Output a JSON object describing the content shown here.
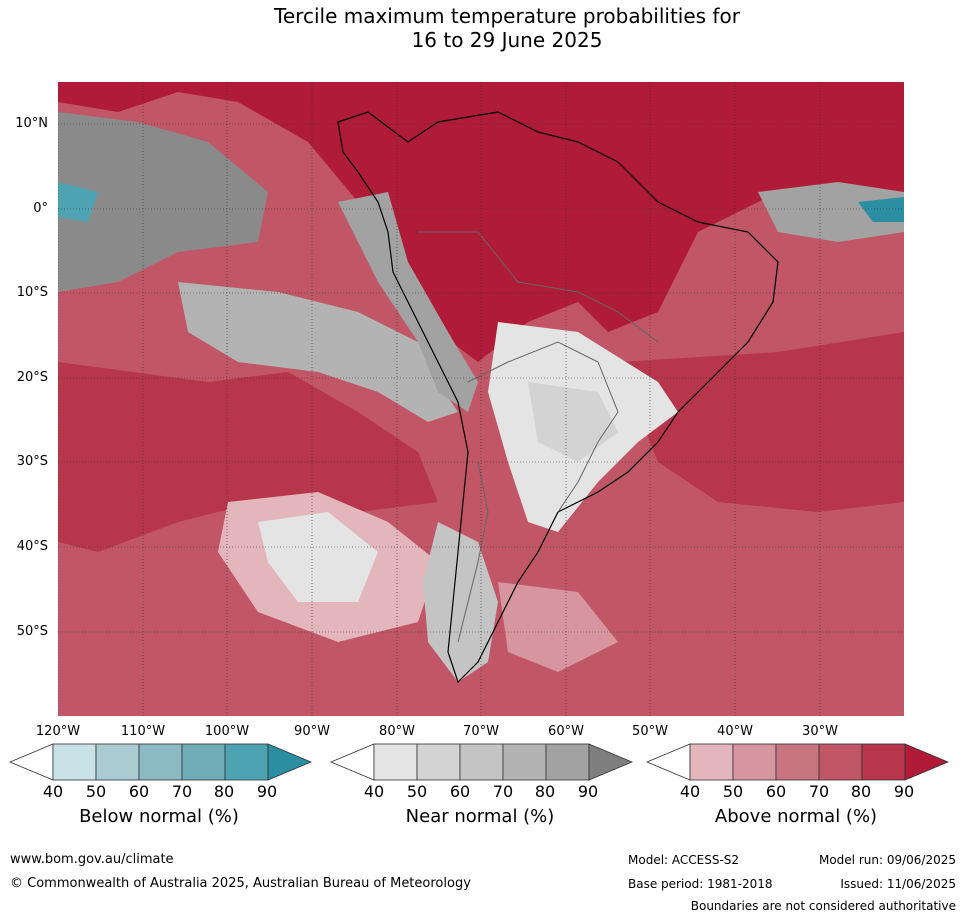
{
  "title_line1": "Tercile maximum temperature probabilities for",
  "title_line2": "16 to 29 June 2025",
  "map": {
    "lat_labels": [
      "10°N",
      "0°",
      "10°S",
      "20°S",
      "30°S",
      "40°S",
      "50°S"
    ],
    "lon_labels": [
      "120°W",
      "110°W",
      "100°W",
      "90°W",
      "80°W",
      "70°W",
      "60°W",
      "50°W",
      "40°W",
      "30°W"
    ]
  },
  "legends": [
    {
      "label": "Below normal (%)",
      "ticks": [
        "40",
        "50",
        "60",
        "70",
        "80",
        "90"
      ],
      "colors": [
        "#ffffff",
        "#c9e2e8",
        "#a9cbd1",
        "#8bbac2",
        "#6fadb9",
        "#4ea3b3",
        "#2b8ea3"
      ]
    },
    {
      "label": "Near normal (%)",
      "ticks": [
        "40",
        "50",
        "60",
        "70",
        "80",
        "90"
      ],
      "colors": [
        "#ffffff",
        "#e4e4e4",
        "#d3d3d3",
        "#c4c4c4",
        "#b3b3b3",
        "#a2a2a2",
        "#7f7f7f"
      ]
    },
    {
      "label": "Above normal (%)",
      "ticks": [
        "40",
        "50",
        "60",
        "70",
        "80",
        "90"
      ],
      "colors": [
        "#ffffff",
        "#e3b6bc",
        "#d7959f",
        "#c97581",
        "#c15667",
        "#b8364b",
        "#b01b38"
      ]
    }
  ],
  "footer": {
    "website": "www.bom.gov.au/climate",
    "copyright": "© Commonwealth of Australia 2025, Australian Bureau of Meteorology",
    "model": "Model: ACCESS-S2",
    "base_period": "Base period: 1981-2018",
    "model_run": "Model run: 09/06/2025",
    "issued": "Issued: 11/06/2025",
    "disclaimer": "Boundaries are not considered authoritative"
  }
}
